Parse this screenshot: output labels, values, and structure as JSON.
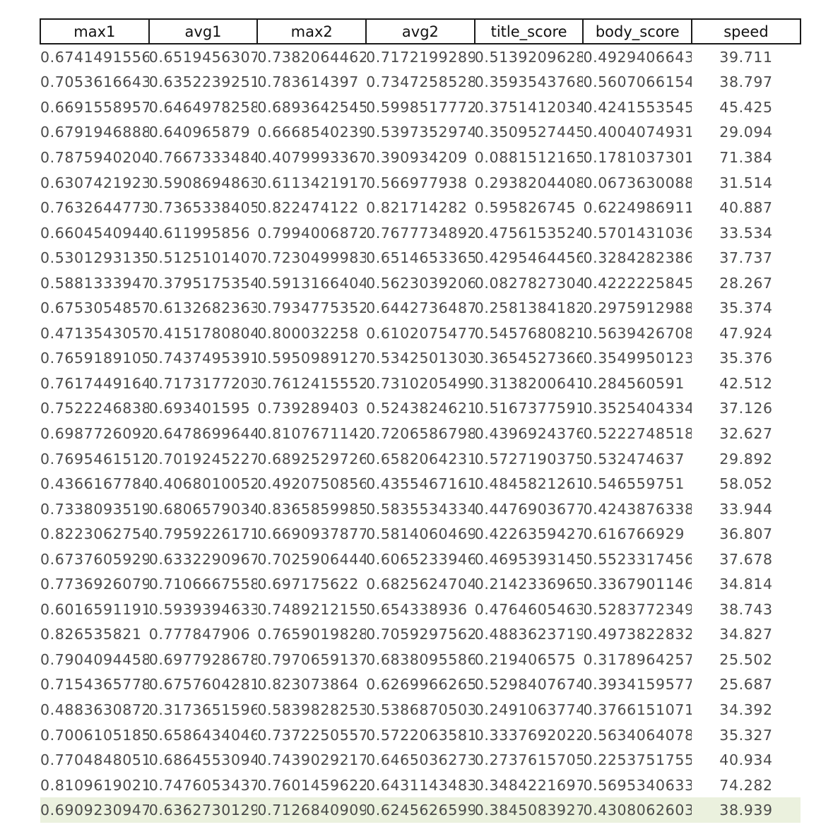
{
  "table": {
    "headers": [
      "max1",
      "avg1",
      "max2",
      "avg2",
      "title_score",
      "body_score",
      "speed"
    ],
    "rows": [
      [
        "0.6741491556",
        "0.6519456307",
        "0.7382064462",
        "0.7172199289",
        "0.5139209628",
        "0.4929406643",
        "39.711"
      ],
      [
        "0.7053616643",
        "0.6352239251",
        "0.783614397",
        "0.7347258528",
        "0.3593543768",
        "0.5607066154",
        "38.797"
      ],
      [
        "0.6691558957",
        "0.6464978258",
        "0.6893642545",
        "0.5998517772",
        "0.3751412034",
        "0.4241553545",
        "45.425"
      ],
      [
        "0.6791946888",
        "0.640965879",
        "0.6668540239",
        "0.5397352974",
        "0.3509527445",
        "0.4004074931",
        "29.094"
      ],
      [
        "0.7875940204",
        "0.7667333484",
        "0.4079993367",
        "0.390934209",
        "0.0881512165",
        "0.1781037301",
        "71.384"
      ],
      [
        "0.6307421923",
        "0.5908694863",
        "0.6113421917",
        "0.566977938",
        "0.2938204408",
        "0.0673630088",
        "31.514"
      ],
      [
        "0.7632644773",
        "0.7365338405",
        "0.822474122",
        "0.821714282",
        "0.595826745",
        "0.6224986911",
        "40.887"
      ],
      [
        "0.6604540944",
        "0.611995856",
        "0.7994006872",
        "0.7677734892",
        "0.4756153524",
        "0.5701431036",
        "33.534"
      ],
      [
        "0.5301293135",
        "0.5125101407",
        "0.7230499983",
        "0.6514653365",
        "0.4295464456",
        "0.3284282386",
        "37.737"
      ],
      [
        "0.5881333947",
        "0.3795175354",
        "0.5913166404",
        "0.5623039206",
        "0.0827827304",
        "0.4222225845",
        "28.267"
      ],
      [
        "0.6753054857",
        "0.6132682363",
        "0.7934775352",
        "0.6442736487",
        "0.2581384182",
        "0.2975912988",
        "35.374"
      ],
      [
        "0.4713543057",
        "0.4151780804",
        "0.800032258",
        "0.6102075477",
        "0.5457680821",
        "0.5639426708",
        "47.924"
      ],
      [
        "0.7659189105",
        "0.7437495391",
        "0.5950989127",
        "0.5342501303",
        "0.3654527366",
        "0.3549950123",
        "35.376"
      ],
      [
        "0.7617449164",
        "0.7173177203",
        "0.7612415552",
        "0.7310205499",
        "0.3138200641",
        "0.284560591",
        "42.512"
      ],
      [
        "0.7522246838",
        "0.693401595",
        "0.739289403",
        "0.5243824621",
        "0.5167377591",
        "0.3525404334",
        "37.126"
      ],
      [
        "0.6987726092",
        "0.6478699644",
        "0.8107671142",
        "0.7206586798",
        "0.4396924376",
        "0.5222748518",
        "32.627"
      ],
      [
        "0.7695461512",
        "0.7019245227",
        "0.6892529726",
        "0.6582064231",
        "0.5727190375",
        "0.532474637",
        "29.892"
      ],
      [
        "0.4366167784",
        "0.4068010052",
        "0.4920750856",
        "0.4355467161",
        "0.4845821261",
        "0.546559751",
        "58.052"
      ],
      [
        "0.7338093519",
        "0.6806579034",
        "0.8365859985",
        "0.5835534334",
        "0.4476903677",
        "0.4243876338",
        "33.944"
      ],
      [
        "0.8223062754",
        "0.7959226171",
        "0.6690937877",
        "0.5814060469",
        "0.4226359427",
        "0.616766929",
        "36.807"
      ],
      [
        "0.6737605929",
        "0.6332290967",
        "0.7025906444",
        "0.6065233946",
        "0.4695393145",
        "0.5523317456",
        "37.678"
      ],
      [
        "0.7736926079",
        "0.7106667558",
        "0.697175622",
        "0.6825624704",
        "0.2142336965",
        "0.3367901146",
        "34.814"
      ],
      [
        "0.6016591191",
        "0.5939394633",
        "0.7489212155",
        "0.654338936",
        "0.4764605463",
        "0.5283772349",
        "38.743"
      ],
      [
        "0.826535821",
        "0.777847906",
        "0.7659019828",
        "0.7059297562",
        "0.4883623719",
        "0.4973822832",
        "34.827"
      ],
      [
        "0.7904094458",
        "0.6977928678",
        "0.7970659137",
        "0.6838095586",
        "0.219406575",
        "0.3178964257",
        "25.502"
      ],
      [
        "0.7154365778",
        "0.6757604281",
        "0.823073864",
        "0.6269966265",
        "0.5298407674",
        "0.3934159577",
        "25.687"
      ],
      [
        "0.4883630872",
        "0.3173651596",
        "0.5839828253",
        "0.5386870503",
        "0.2491063774",
        "0.3766151071",
        "34.392"
      ],
      [
        "0.7006105185",
        "0.6586434046",
        "0.7372250557",
        "0.5722063581",
        "0.3337692022",
        "0.5634064078",
        "35.327"
      ],
      [
        "0.7704848051",
        "0.6864553094",
        "0.7439029217",
        "0.6465036273",
        "0.2737615705",
        "0.2253751755",
        "40.934"
      ],
      [
        "0.8109619021",
        "0.7476053437",
        "0.7601459622",
        "0.6431143483",
        "0.3484221697",
        "0.5695340633",
        "74.282"
      ],
      [
        "0.6909230947",
        "0.6362730129",
        "0.7126840909",
        "0.6245626599",
        "0.3845083927",
        "0.4308062603",
        "38.939"
      ]
    ],
    "highlight_row_color": "#ebf1de"
  }
}
